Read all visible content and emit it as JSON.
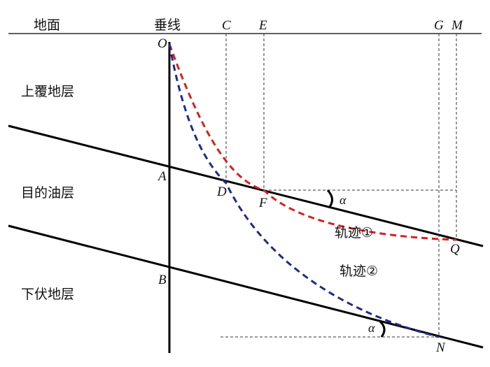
{
  "labels": {
    "ground": "地面",
    "vertical": "垂线",
    "overburden": "上覆地层",
    "target": "目的油层",
    "underlying": "下伏地层",
    "track1": "轨迹①",
    "track2": "轨迹②",
    "alpha1": "α",
    "alpha2": "α"
  },
  "points": {
    "O": "O",
    "A": "A",
    "B": "B",
    "C": "C",
    "D": "D",
    "E": "E",
    "F": "F",
    "G": "G",
    "M": "M",
    "Q": "Q",
    "N": "N"
  },
  "colors": {
    "track1": "#d62020",
    "track2": "#1f2a8a",
    "lines": "#000000"
  }
}
